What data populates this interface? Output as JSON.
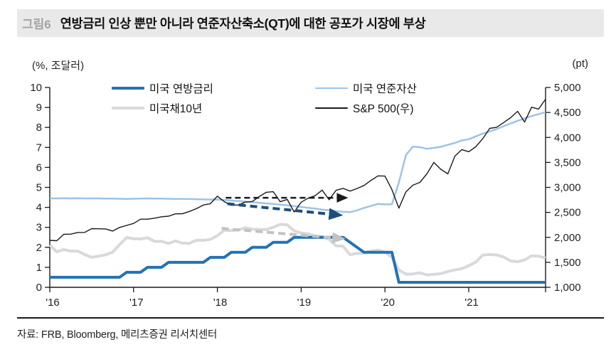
{
  "header": {
    "fig_label": "그림6",
    "title": "연방금리 인상 뿐만 아니라 연준자산축소(QT)에 대한 공포가 시장에 부상"
  },
  "source": "자료: FRB, Bloomberg, 메리츠증권 리서치센터",
  "colors": {
    "header_bg": "#e9e9e9",
    "fig_label": "#a3a3a3",
    "axis": "#1a1a1a",
    "tick_text": "#222222",
    "fed_funds_blue": "#2272b5",
    "treasury_gray": "#d9d9d9",
    "fed_assets_lightblue": "#9dc3e6",
    "sp500_black": "#1a1a1a",
    "arrow_navy": "#1f4e79",
    "arrow_gray": "#c2c2c2"
  },
  "chart_data": {
    "type": "line",
    "title": "연방금리 인상 뿐만 아니라 연준자산축소(QT)에 대한 공포가 시장에 부상",
    "axis_units": {
      "left": "(%, 조달러)",
      "right": "(pt)"
    },
    "x_start_year": 2016,
    "x_frequency": "monthly",
    "x_tick_labels": [
      "'16",
      "'17",
      "'18",
      "'19",
      "'20",
      "'21"
    ],
    "left_axis": {
      "min": 0,
      "max": 10,
      "tick_step": 1,
      "tick_labels": [
        "0",
        "1",
        "2",
        "3",
        "4",
        "5",
        "6",
        "7",
        "8",
        "9",
        "10"
      ]
    },
    "right_axis": {
      "min": 1000,
      "max": 5000,
      "tick_step": 500,
      "tick_labels": [
        "1,000",
        "1,500",
        "2,000",
        "2,500",
        "3,000",
        "3,500",
        "4,000",
        "4,500",
        "5,000"
      ]
    },
    "grid": false,
    "legend_position": "top-inside",
    "series": [
      {
        "name": "미국 연방금리",
        "axis": "left",
        "color": "#2272b5",
        "width": 4,
        "values": [
          0.5,
          0.5,
          0.5,
          0.5,
          0.5,
          0.5,
          0.5,
          0.5,
          0.5,
          0.5,
          0.5,
          0.75,
          0.75,
          0.75,
          1.0,
          1.0,
          1.0,
          1.25,
          1.25,
          1.25,
          1.25,
          1.25,
          1.25,
          1.5,
          1.5,
          1.5,
          1.75,
          1.75,
          1.75,
          2.0,
          2.0,
          2.0,
          2.25,
          2.25,
          2.25,
          2.5,
          2.5,
          2.5,
          2.5,
          2.5,
          2.5,
          2.5,
          2.5,
          2.25,
          2.0,
          1.75,
          1.75,
          1.75,
          1.75,
          1.75,
          0.25,
          0.25,
          0.25,
          0.25,
          0.25,
          0.25,
          0.25,
          0.25,
          0.25,
          0.25,
          0.25,
          0.25,
          0.25,
          0.25,
          0.25,
          0.25,
          0.25,
          0.25,
          0.25,
          0.25,
          0.25,
          0.25
        ]
      },
      {
        "name": "미국채10년",
        "axis": "left",
        "color": "#d9d9d9",
        "width": 4,
        "values": [
          2.11,
          1.78,
          1.89,
          1.81,
          1.81,
          1.64,
          1.5,
          1.56,
          1.63,
          1.76,
          2.14,
          2.49,
          2.43,
          2.42,
          2.48,
          2.3,
          2.3,
          2.19,
          2.32,
          2.21,
          2.2,
          2.36,
          2.35,
          2.4,
          2.58,
          2.86,
          2.84,
          2.87,
          2.98,
          2.91,
          2.89,
          2.89,
          3.0,
          3.15,
          3.12,
          2.83,
          2.71,
          2.68,
          2.57,
          2.53,
          2.4,
          2.07,
          2.06,
          1.63,
          1.7,
          1.71,
          1.81,
          1.86,
          1.76,
          1.5,
          0.87,
          0.66,
          0.67,
          0.73,
          0.62,
          0.65,
          0.68,
          0.79,
          0.87,
          0.93,
          1.08,
          1.26,
          1.61,
          1.64,
          1.62,
          1.52,
          1.32,
          1.28,
          1.37,
          1.58,
          1.56,
          1.47
        ]
      },
      {
        "name": "미국 연준자산",
        "axis": "left",
        "color": "#9dc3e6",
        "width": 2.5,
        "values": [
          4.45,
          4.45,
          4.46,
          4.45,
          4.46,
          4.45,
          4.45,
          4.45,
          4.44,
          4.44,
          4.43,
          4.42,
          4.43,
          4.44,
          4.45,
          4.44,
          4.44,
          4.43,
          4.42,
          4.42,
          4.42,
          4.41,
          4.4,
          4.39,
          4.39,
          4.37,
          4.34,
          4.32,
          4.29,
          4.26,
          4.23,
          4.2,
          4.17,
          4.14,
          4.1,
          4.06,
          4.02,
          3.98,
          3.94,
          3.89,
          3.85,
          3.81,
          3.78,
          3.76,
          3.85,
          3.97,
          4.07,
          4.17,
          4.15,
          4.16,
          5.25,
          6.62,
          7.04,
          7.01,
          6.93,
          6.98,
          7.03,
          7.13,
          7.22,
          7.35,
          7.41,
          7.55,
          7.69,
          7.8,
          7.92,
          8.06,
          8.2,
          8.33,
          8.45,
          8.57,
          8.67,
          8.76
        ]
      },
      {
        "name": "S&P 500(우)",
        "axis": "right",
        "color": "#1a1a1a",
        "width": 1.4,
        "values": [
          1940,
          1932,
          2060,
          2065,
          2097,
          2099,
          2174,
          2171,
          2168,
          2126,
          2199,
          2239,
          2279,
          2364,
          2363,
          2384,
          2412,
          2423,
          2470,
          2472,
          2519,
          2575,
          2648,
          2674,
          2824,
          2714,
          2641,
          2648,
          2705,
          2718,
          2816,
          2902,
          2914,
          2712,
          2760,
          2507,
          2704,
          2784,
          2834,
          2946,
          2752,
          2942,
          2980,
          2926,
          2977,
          3038,
          3141,
          3231,
          3226,
          2954,
          2585,
          2912,
          3044,
          3100,
          3271,
          3500,
          3363,
          3270,
          3622,
          3756,
          3714,
          3811,
          3973,
          4181,
          4204,
          4298,
          4395,
          4523,
          4308,
          4605,
          4567,
          4766
        ]
      }
    ],
    "annotations": [
      {
        "name": "sp500-flat-dashed-arrow",
        "color": "#1a1a1a",
        "width": 2.5,
        "dash": "8 5",
        "head_w": 6.5,
        "head_h": 5.5,
        "x1": 2018.1,
        "y1": 4.48,
        "x2": 2019.52,
        "y2": 4.48
      },
      {
        "name": "assets-decline-dashed-arrow",
        "color": "#1f4e79",
        "width": 4,
        "dash": "10 6",
        "head_w": 5.0,
        "head_h": 4.2,
        "x1": 2018.12,
        "y1": 4.18,
        "x2": 2019.45,
        "y2": 3.62
      },
      {
        "name": "treasury-decline-dashed-arrow",
        "color": "#c2c2c2",
        "width": 4,
        "dash": "10 6",
        "head_w": 4.6,
        "head_h": 4.0,
        "x1": 2018.05,
        "y1": 2.95,
        "x2": 2019.48,
        "y2": 2.44
      }
    ]
  }
}
